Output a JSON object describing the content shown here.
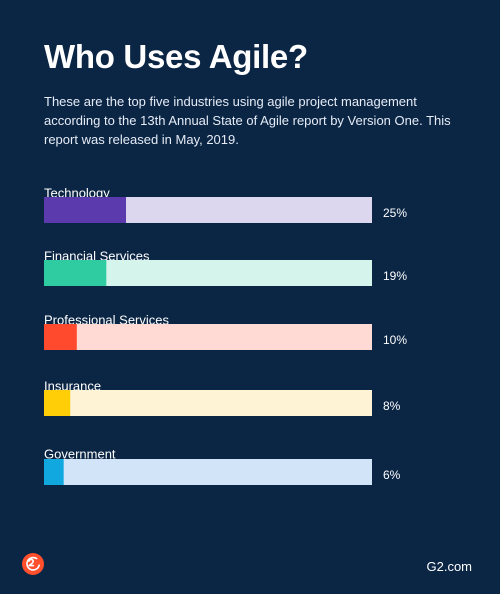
{
  "header": {
    "title": "Who Uses Agile?",
    "subtitle": "These are the top five industries using agile project management according to the 13th Annual State of Agile report by Version One. This report was released in May, 2019."
  },
  "chart_data": {
    "type": "bar",
    "orientation": "horizontal",
    "categories": [
      "Technology",
      "Financial Services",
      "Professional Services",
      "Insurance",
      "Government"
    ],
    "values": [
      25,
      19,
      10,
      8,
      6
    ],
    "value_labels": [
      "25%",
      "19%",
      "10%",
      "8%",
      "6%"
    ],
    "unit": "%",
    "xlim": [
      0,
      100
    ],
    "bar_colors": [
      "#5b3aad",
      "#2ecca0",
      "#ff4a2e",
      "#ffce07",
      "#11a8e0"
    ],
    "track_colors": [
      "#dcd6ef",
      "#d5f5ec",
      "#ffdad4",
      "#fff3d6",
      "#d2e5f8"
    ],
    "grid": false,
    "legend": "none"
  },
  "footer": {
    "logo_icon": "g2-logo-icon",
    "site": "G2.com"
  }
}
